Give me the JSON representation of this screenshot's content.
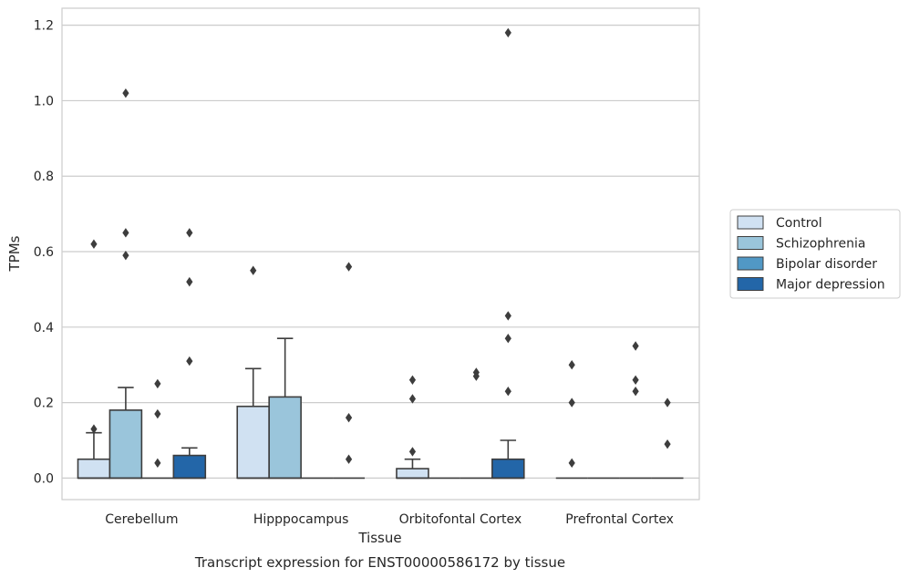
{
  "chart_data": {
    "type": "boxplot",
    "title": "Transcript expression for ENST00000586172 by tissue",
    "xlabel": "Tissue",
    "ylabel": "TPMs",
    "ylim": [
      -0.057,
      1.245
    ],
    "yticks": [
      0.0,
      0.2,
      0.4,
      0.6,
      0.8,
      1.0,
      1.2
    ],
    "ytick_labels": [
      "0.0",
      "0.2",
      "0.4",
      "0.6",
      "0.8",
      "1.0",
      "1.2"
    ],
    "grid": "y-major",
    "legend_position": "right",
    "categories": [
      "Cerebellum",
      "Hipppocampus",
      "Orbitofontal Cortex",
      "Prefrontal Cortex"
    ],
    "series": [
      {
        "name": "Control",
        "color": "#d0e1f2",
        "boxes": [
          {
            "q1": 0.0,
            "median": 0.0,
            "q3": 0.05,
            "whisker_low": 0.0,
            "whisker_high": 0.12,
            "outliers": [
              0.62,
              0.13
            ]
          },
          {
            "q1": 0.0,
            "median": 0.0,
            "q3": 0.19,
            "whisker_low": 0.0,
            "whisker_high": 0.29,
            "outliers": [
              0.55
            ]
          },
          {
            "q1": 0.0,
            "median": 0.0,
            "q3": 0.025,
            "whisker_low": 0.0,
            "whisker_high": 0.05,
            "outliers": [
              0.26,
              0.21,
              0.07
            ]
          },
          {
            "q1": 0.0,
            "median": 0.0,
            "q3": 0.0,
            "whisker_low": 0.0,
            "whisker_high": 0.0,
            "outliers": [
              0.3,
              0.2,
              0.04
            ]
          }
        ]
      },
      {
        "name": "Schizophrenia",
        "color": "#9ac5db",
        "boxes": [
          {
            "q1": 0.0,
            "median": 0.0,
            "q3": 0.18,
            "whisker_low": 0.0,
            "whisker_high": 0.24,
            "outliers": [
              1.02,
              0.65,
              0.59
            ]
          },
          {
            "q1": 0.0,
            "median": 0.0,
            "q3": 0.215,
            "whisker_low": 0.0,
            "whisker_high": 0.37,
            "outliers": []
          },
          {
            "q1": 0.0,
            "median": 0.0,
            "q3": 0.0,
            "whisker_low": 0.0,
            "whisker_high": 0.0,
            "outliers": []
          },
          {
            "q1": 0.0,
            "median": 0.0,
            "q3": 0.0,
            "whisker_low": 0.0,
            "whisker_high": 0.0,
            "outliers": []
          }
        ]
      },
      {
        "name": "Bipolar disorder",
        "color": "#5198c5",
        "boxes": [
          {
            "q1": 0.0,
            "median": 0.0,
            "q3": 0.0,
            "whisker_low": 0.0,
            "whisker_high": 0.0,
            "outliers": [
              0.25,
              0.17,
              0.04
            ]
          },
          {
            "q1": 0.0,
            "median": 0.0,
            "q3": 0.0,
            "whisker_low": 0.0,
            "whisker_high": 0.0,
            "outliers": []
          },
          {
            "q1": 0.0,
            "median": 0.0,
            "q3": 0.0,
            "whisker_low": 0.0,
            "whisker_high": 0.0,
            "outliers": [
              0.28,
              0.27
            ]
          },
          {
            "q1": 0.0,
            "median": 0.0,
            "q3": 0.0,
            "whisker_low": 0.0,
            "whisker_high": 0.0,
            "outliers": [
              0.35,
              0.26,
              0.23
            ]
          }
        ]
      },
      {
        "name": "Major depression",
        "color": "#2366a8",
        "boxes": [
          {
            "q1": 0.0,
            "median": 0.0,
            "q3": 0.06,
            "whisker_low": 0.0,
            "whisker_high": 0.08,
            "outliers": [
              0.65,
              0.52,
              0.31
            ]
          },
          {
            "q1": 0.0,
            "median": 0.0,
            "q3": 0.0,
            "whisker_low": 0.0,
            "whisker_high": 0.0,
            "outliers": [
              0.56,
              0.16,
              0.05
            ]
          },
          {
            "q1": 0.0,
            "median": 0.0,
            "q3": 0.05,
            "whisker_low": 0.0,
            "whisker_high": 0.1,
            "outliers": [
              1.18,
              0.43,
              0.37,
              0.23
            ]
          },
          {
            "q1": 0.0,
            "median": 0.0,
            "q3": 0.0,
            "whisker_low": 0.0,
            "whisker_high": 0.0,
            "outliers": [
              0.2,
              0.09
            ]
          }
        ]
      }
    ]
  }
}
